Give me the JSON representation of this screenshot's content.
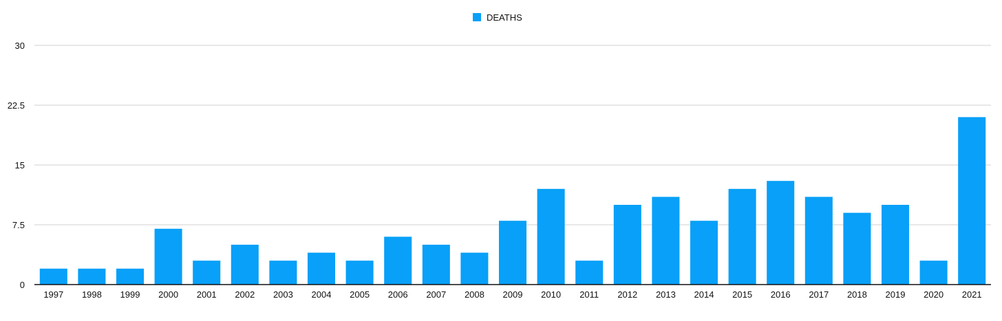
{
  "chart_data": {
    "type": "bar",
    "categories": [
      "1997",
      "1998",
      "1999",
      "2000",
      "2001",
      "2002",
      "2003",
      "2004",
      "2005",
      "2006",
      "2007",
      "2008",
      "2009",
      "2010",
      "2011",
      "2012",
      "2013",
      "2014",
      "2015",
      "2016",
      "2017",
      "2018",
      "2019",
      "2020",
      "2021"
    ],
    "series": [
      {
        "name": "DEATHS",
        "values": [
          2,
          2,
          2,
          7,
          3,
          5,
          3,
          4,
          3,
          6,
          5,
          4,
          8,
          12,
          3,
          10,
          11,
          8,
          12,
          13,
          11,
          9,
          10,
          3,
          21
        ]
      }
    ],
    "title": "",
    "xlabel": "",
    "ylabel": "",
    "ylim": [
      0,
      30
    ],
    "yticks": [
      "0",
      "7.5",
      "15",
      "22.5",
      "30"
    ],
    "grid": true,
    "legend_position": "top-center",
    "colors": {
      "bar": "#08a0f8",
      "grid": "#d0d0d0",
      "axis": "#111111"
    }
  }
}
